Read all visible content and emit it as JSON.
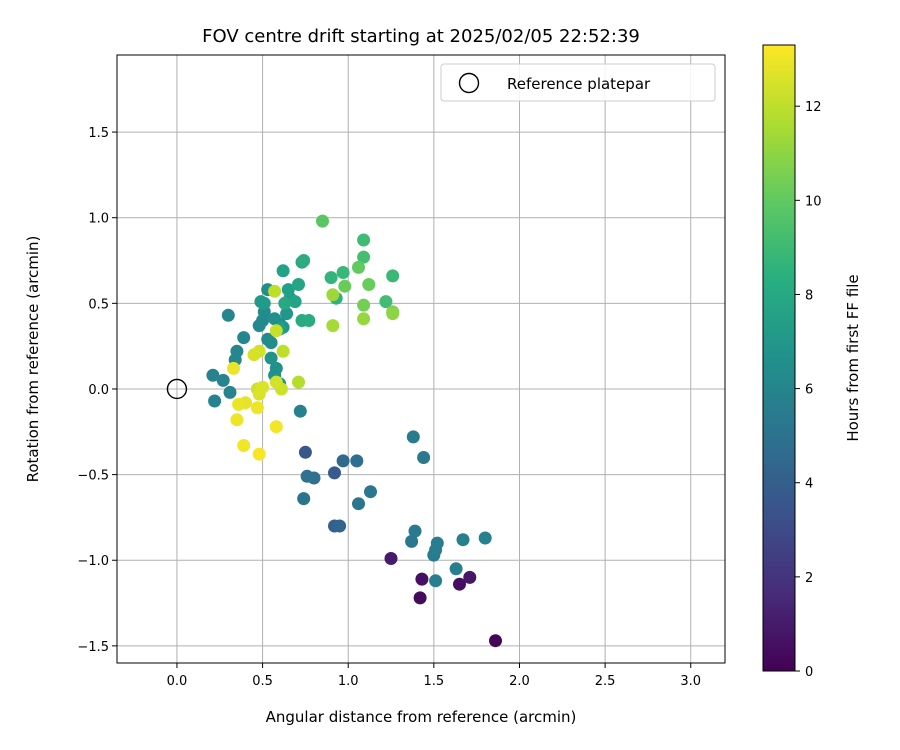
{
  "chart_data": {
    "type": "scatter",
    "title": "FOV centre drift starting at 2025/02/05 22:52:39",
    "xlabel": "Angular distance from reference (arcmin)",
    "ylabel": "Rotation from reference (arcmin)",
    "xlim": [
      -0.35,
      3.2
    ],
    "ylim": [
      -1.6,
      1.95
    ],
    "x_ticks": [
      0.0,
      0.5,
      1.0,
      1.5,
      2.0,
      2.5,
      3.0
    ],
    "x_tick_labels": [
      "0.0",
      "0.5",
      "1.0",
      "1.5",
      "2.0",
      "2.5",
      "3.0"
    ],
    "y_ticks": [
      -1.5,
      -1.0,
      -0.5,
      0.0,
      0.5,
      1.0,
      1.5
    ],
    "y_tick_labels": [
      "−1.5",
      "−1.0",
      "−0.5",
      "0.0",
      "0.5",
      "1.0",
      "1.5"
    ],
    "grid": true,
    "legend": {
      "placement": "top-right",
      "entries": [
        "Reference platepar"
      ]
    },
    "reference_point": {
      "name": "Reference platepar",
      "x": 0.0,
      "y": 0.0
    },
    "colorbar": {
      "label": "Hours from first FF file",
      "min": 0,
      "max": 13.3,
      "ticks": [
        0,
        2,
        4,
        6,
        8,
        10,
        12
      ],
      "tick_labels": [
        "0",
        "2",
        "4",
        "6",
        "8",
        "10",
        "12"
      ],
      "colormap": "viridis"
    },
    "points": [
      [
        1.86,
        -1.47,
        0.2
      ],
      [
        1.42,
        -1.22,
        0.4
      ],
      [
        1.65,
        -1.14,
        0.5
      ],
      [
        1.43,
        -1.11,
        0.6
      ],
      [
        1.71,
        -1.1,
        0.8
      ],
      [
        1.25,
        -0.99,
        1.0
      ],
      [
        0.75,
        -0.37,
        3.6
      ],
      [
        0.92,
        -0.49,
        3.8
      ],
      [
        0.92,
        -0.8,
        4.0
      ],
      [
        0.95,
        -0.8,
        4.3
      ],
      [
        0.97,
        -0.42,
        4.6
      ],
      [
        1.05,
        -0.42,
        4.8
      ],
      [
        0.8,
        -0.52,
        4.9
      ],
      [
        0.76,
        -0.51,
        5.0
      ],
      [
        0.74,
        -0.64,
        5.1
      ],
      [
        1.06,
        -0.67,
        5.2
      ],
      [
        1.13,
        -0.6,
        5.3
      ],
      [
        1.37,
        -0.89,
        5.3
      ],
      [
        1.39,
        -0.83,
        5.4
      ],
      [
        1.44,
        -0.4,
        5.4
      ],
      [
        1.38,
        -0.28,
        5.5
      ],
      [
        1.5,
        -0.97,
        5.5
      ],
      [
        1.51,
        -0.94,
        5.6
      ],
      [
        1.52,
        -0.9,
        5.6
      ],
      [
        1.51,
        -1.12,
        5.7
      ],
      [
        1.63,
        -1.05,
        5.7
      ],
      [
        1.67,
        -0.88,
        5.8
      ],
      [
        1.8,
        -0.87,
        5.8
      ],
      [
        0.72,
        -0.13,
        5.8
      ],
      [
        0.21,
        0.08,
        5.9
      ],
      [
        0.22,
        -0.07,
        5.9
      ],
      [
        0.27,
        0.05,
        6.0
      ],
      [
        0.31,
        -0.02,
        6.0
      ],
      [
        0.3,
        0.43,
        6.1
      ],
      [
        0.35,
        0.22,
        6.1
      ],
      [
        0.34,
        0.17,
        6.2
      ],
      [
        0.39,
        0.3,
        6.2
      ],
      [
        0.48,
        0.37,
        6.3
      ],
      [
        0.5,
        0.4,
        6.3
      ],
      [
        0.51,
        0.45,
        6.4
      ],
      [
        0.53,
        0.29,
        6.4
      ],
      [
        0.55,
        0.27,
        6.5
      ],
      [
        0.53,
        0.58,
        6.5
      ],
      [
        0.57,
        0.41,
        6.6
      ],
      [
        0.6,
        0.38,
        6.6
      ],
      [
        0.58,
        0.12,
        6.7
      ],
      [
        0.57,
        0.08,
        6.7
      ],
      [
        0.6,
        0.03,
        6.8
      ],
      [
        0.55,
        0.18,
        6.8
      ],
      [
        0.62,
        0.36,
        6.9
      ],
      [
        0.64,
        0.44,
        7.0
      ],
      [
        0.66,
        0.53,
        7.1
      ],
      [
        0.49,
        0.51,
        7.2
      ],
      [
        0.51,
        0.5,
        7.3
      ],
      [
        0.6,
        0.35,
        7.4
      ],
      [
        0.65,
        0.58,
        7.5
      ],
      [
        0.62,
        0.69,
        7.6
      ],
      [
        0.69,
        0.51,
        7.7
      ],
      [
        0.71,
        0.61,
        7.8
      ],
      [
        0.73,
        0.74,
        7.9
      ],
      [
        0.63,
        0.5,
        8.0
      ],
      [
        0.73,
        0.4,
        8.1
      ],
      [
        0.77,
        0.4,
        8.2
      ],
      [
        0.74,
        0.75,
        8.3
      ],
      [
        0.93,
        0.53,
        8.5
      ],
      [
        0.9,
        0.65,
        8.7
      ],
      [
        0.97,
        0.68,
        8.9
      ],
      [
        1.09,
        0.87,
        9.1
      ],
      [
        1.09,
        0.77,
        9.3
      ],
      [
        1.22,
        0.51,
        9.2
      ],
      [
        1.26,
        0.66,
        9.0
      ],
      [
        0.85,
        0.98,
        9.8
      ],
      [
        1.06,
        0.71,
        10.0
      ],
      [
        0.98,
        0.6,
        10.2
      ],
      [
        1.09,
        0.49,
        10.4
      ],
      [
        1.12,
        0.61,
        10.2
      ],
      [
        1.26,
        0.45,
        10.6
      ],
      [
        0.91,
        0.55,
        11.3
      ],
      [
        0.91,
        0.37,
        11.5
      ],
      [
        1.09,
        0.41,
        11.2
      ],
      [
        1.26,
        0.44,
        11.0
      ],
      [
        0.71,
        0.04,
        11.8
      ],
      [
        0.62,
        0.22,
        12.0
      ],
      [
        0.57,
        0.57,
        12.0
      ],
      [
        0.58,
        0.34,
        12.2
      ],
      [
        0.61,
        0.0,
        12.3
      ],
      [
        0.58,
        0.04,
        12.4
      ],
      [
        0.47,
        0.0,
        12.3
      ],
      [
        0.48,
        0.22,
        12.4
      ],
      [
        0.45,
        0.2,
        12.5
      ],
      [
        0.5,
        0.01,
        12.6
      ],
      [
        0.48,
        -0.03,
        12.6
      ],
      [
        0.4,
        -0.08,
        12.8
      ],
      [
        0.36,
        -0.09,
        12.9
      ],
      [
        0.33,
        0.12,
        12.9
      ],
      [
        0.35,
        -0.18,
        13.0
      ],
      [
        0.47,
        -0.11,
        13.0
      ],
      [
        0.58,
        -0.22,
        13.1
      ],
      [
        0.39,
        -0.33,
        13.1
      ],
      [
        0.48,
        -0.38,
        13.2
      ]
    ]
  }
}
